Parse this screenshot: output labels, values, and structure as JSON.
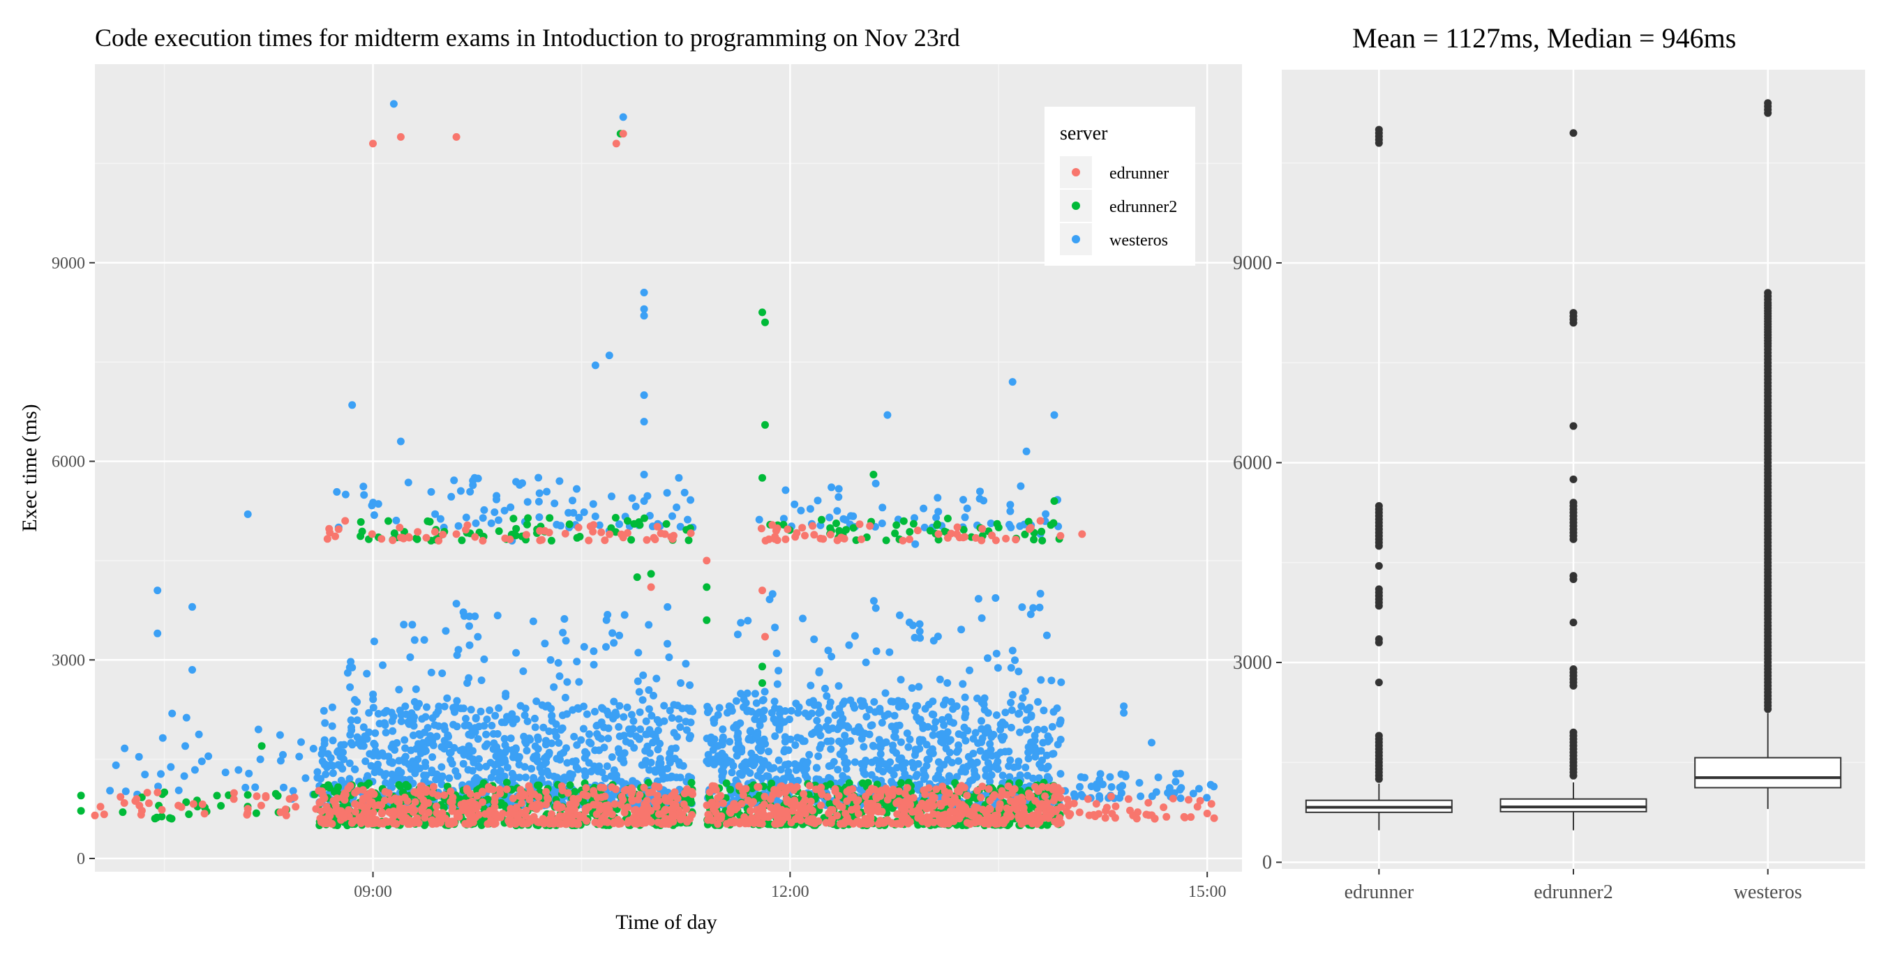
{
  "chart_data": [
    {
      "type": "scatter",
      "title": "Code execution times for midterm exams in Intoduction to programming on Nov 23rd",
      "xlabel": "Time of day",
      "ylabel": "Exec time (ms)",
      "xlim": [
        7.0,
        15.25
      ],
      "ylim": [
        -200,
        12000
      ],
      "x_ticks": [
        9,
        12,
        15
      ],
      "x_tick_labels": [
        "09:00",
        "12:00",
        "15:00"
      ],
      "y_ticks": [
        0,
        3000,
        6000,
        9000
      ],
      "y_tick_labels": [
        "0",
        "3000",
        "6000",
        "9000"
      ],
      "grid": true,
      "legend": {
        "title": "server",
        "placement": "top-right",
        "entries": [
          {
            "name": "edrunner",
            "color": "#F8766D"
          },
          {
            "name": "edrunner2",
            "color": "#00BA38"
          },
          {
            "name": "westeros",
            "color": "#3BA0F5"
          }
        ]
      },
      "series": [
        {
          "name": "edrunner",
          "color": "#F8766D",
          "points": [
            [
              9.0,
              10800
            ],
            [
              9.2,
              10900
            ],
            [
              9.6,
              10900
            ],
            [
              10.75,
              10800
            ],
            [
              10.8,
              10950
            ],
            [
              11.0,
              4100
            ],
            [
              11.4,
              4500
            ],
            [
              11.8,
              4050
            ],
            [
              11.82,
              3350
            ],
            [
              7.0,
              650
            ],
            [
              7.3,
              900
            ],
            [
              7.6,
              800
            ],
            [
              8.1,
              750
            ],
            [
              8.4,
              900
            ],
            [
              14.0,
              800
            ],
            [
              14.5,
              700
            ],
            [
              15.0,
              680
            ],
            [
              8.8,
              5100
            ],
            [
              9.2,
              4850
            ],
            [
              9.6,
              4900
            ],
            [
              10.2,
              4950
            ],
            [
              10.8,
              4850
            ],
            [
              11.1,
              4900
            ],
            [
              11.9,
              4950
            ],
            [
              12.5,
              5050
            ],
            [
              13.2,
              4900
            ],
            [
              13.8,
              5100
            ],
            [
              14.1,
              4900
            ]
          ],
          "clusters": [
            {
              "x_range": [
                8.65,
                11.3
              ],
              "y_range": [
                5050,
                4800
              ],
              "count": 50
            },
            {
              "x_range": [
                11.75,
                13.95
              ],
              "y_range": [
                5050,
                4800
              ],
              "count": 45
            },
            {
              "x_range": [
                8.6,
                11.3
              ],
              "y_range": [
                520,
                1100
              ],
              "count": 500
            },
            {
              "x_range": [
                11.4,
                13.95
              ],
              "y_range": [
                520,
                1100
              ],
              "count": 500
            },
            {
              "x_range": [
                13.95,
                15.05
              ],
              "y_range": [
                600,
                950
              ],
              "count": 40
            },
            {
              "x_range": [
                7.0,
                8.6
              ],
              "y_range": [
                620,
                1000
              ],
              "count": 30
            }
          ]
        },
        {
          "name": "edrunner2",
          "color": "#00BA38",
          "points": [
            [
              10.78,
              10950
            ],
            [
              11.8,
              8250
            ],
            [
              11.82,
              8100
            ],
            [
              11.82,
              6550
            ],
            [
              11.8,
              5750
            ],
            [
              11.0,
              4300
            ],
            [
              10.9,
              4250
            ],
            [
              11.4,
              4100
            ],
            [
              11.4,
              3600
            ],
            [
              11.8,
              2900
            ],
            [
              11.8,
              2650
            ],
            [
              6.9,
              950
            ],
            [
              6.9,
              720
            ],
            [
              7.2,
              700
            ],
            [
              7.5,
              1000
            ],
            [
              8.2,
              1700
            ],
            [
              12.6,
              5800
            ],
            [
              13.9,
              5400
            ],
            [
              13.5,
              5000
            ]
          ],
          "clusters": [
            {
              "x_range": [
                8.75,
                11.3
              ],
              "y_range": [
                5150,
                4800
              ],
              "count": 60
            },
            {
              "x_range": [
                11.75,
                13.95
              ],
              "y_range": [
                5150,
                4800
              ],
              "count": 50
            },
            {
              "x_range": [
                8.6,
                11.3
              ],
              "y_range": [
                500,
                1150
              ],
              "count": 450
            },
            {
              "x_range": [
                11.4,
                13.95
              ],
              "y_range": [
                500,
                1150
              ],
              "count": 450
            },
            {
              "x_range": [
                7.2,
                8.6
              ],
              "y_range": [
                600,
                1000
              ],
              "count": 25
            }
          ]
        },
        {
          "name": "westeros",
          "color": "#3BA0F5",
          "points": [
            [
              9.15,
              11400
            ],
            [
              10.8,
              11200
            ],
            [
              10.95,
              8550
            ],
            [
              10.6,
              7450
            ],
            [
              10.7,
              7600
            ],
            [
              9.2,
              6300
            ],
            [
              8.85,
              6850
            ],
            [
              12.7,
              6700
            ],
            [
              13.6,
              7200
            ],
            [
              13.7,
              6150
            ],
            [
              13.9,
              6700
            ],
            [
              11.2,
              5750
            ],
            [
              7.45,
              4050
            ],
            [
              7.45,
              3400
            ],
            [
              7.7,
              3800
            ],
            [
              8.1,
              5200
            ],
            [
              7.7,
              2850
            ],
            [
              9.3,
              3300
            ],
            [
              9.6,
              3850
            ],
            [
              10.95,
              8200
            ],
            [
              10.95,
              8300
            ],
            [
              10.95,
              7000
            ],
            [
              10.95,
              6600
            ],
            [
              10.95,
              5800
            ],
            [
              10.95,
              5400
            ],
            [
              10.0,
              4800
            ],
            [
              10.7,
              4950
            ],
            [
              13.8,
              4000
            ],
            [
              13.8,
              4900
            ],
            [
              12.9,
              4750
            ],
            [
              14.4,
              2200
            ],
            [
              14.4,
              2300
            ],
            [
              14.6,
              1750
            ]
          ],
          "clusters": [
            {
              "x_range": [
                8.7,
                11.3
              ],
              "y_range": [
                5000,
                5800
              ],
              "count": 80
            },
            {
              "x_range": [
                11.75,
                13.95
              ],
              "y_range": [
                5000,
                5700
              ],
              "count": 55
            },
            {
              "x_range": [
                8.6,
                11.3
              ],
              "y_range": [
                800,
                2300
              ],
              "count": 900
            },
            {
              "x_range": [
                11.4,
                13.95
              ],
              "y_range": [
                800,
                2400
              ],
              "count": 900
            },
            {
              "x_range": [
                8.8,
                11.3
              ],
              "y_range": [
                2300,
                3800
              ],
              "count": 90
            },
            {
              "x_range": [
                11.6,
                13.95
              ],
              "y_range": [
                2300,
                4000
              ],
              "count": 90
            },
            {
              "x_range": [
                7.1,
                8.6
              ],
              "y_range": [
                900,
                2200
              ],
              "count": 40
            },
            {
              "x_range": [
                13.95,
                15.05
              ],
              "y_range": [
                900,
                1300
              ],
              "count": 50
            }
          ]
        }
      ]
    },
    {
      "type": "box",
      "title": "Mean = 1127ms, Median = 946ms",
      "xlabel": "",
      "ylabel": "",
      "categories": [
        "edrunner",
        "edrunner2",
        "westeros"
      ],
      "ylim": [
        -100,
        11900
      ],
      "y_ticks": [
        0,
        3000,
        6000,
        9000
      ],
      "y_tick_labels": [
        "0",
        "3000",
        "6000",
        "9000"
      ],
      "grid": true,
      "boxes": [
        {
          "category": "edrunner",
          "min": 480,
          "q1": 750,
          "median": 825,
          "q3": 930,
          "max": 1180,
          "outliers": [
            10800,
            10900,
            10950,
            11000,
            5350,
            5250,
            5150,
            5050,
            4950,
            4850,
            4750,
            4450,
            4100,
            4000,
            3850,
            3350,
            3300,
            2700,
            1900,
            1800,
            1700,
            1600,
            1500,
            1400,
            1300,
            1250
          ]
        },
        {
          "category": "edrunner2",
          "min": 480,
          "q1": 760,
          "median": 830,
          "q3": 950,
          "max": 1200,
          "outliers": [
            10950,
            8250,
            8100,
            6550,
            5750,
            5400,
            5250,
            5150,
            5050,
            4950,
            4850,
            4300,
            4250,
            3600,
            2900,
            2800,
            2650,
            1950,
            1850,
            1700,
            1600,
            1500,
            1400,
            1300
          ]
        },
        {
          "category": "westeros",
          "min": 800,
          "q1": 1120,
          "median": 1270,
          "q3": 1570,
          "max": 2240,
          "outliers": [
            11400,
            11250,
            8550,
            8400,
            8200,
            8000,
            7750,
            7600,
            7450,
            7300,
            7200,
            7100,
            6950,
            6850,
            6750,
            6700,
            6600,
            6450,
            6300,
            6150,
            6000,
            5850,
            5750,
            5600,
            5500,
            5400,
            5300,
            5200,
            5100,
            5000,
            4900,
            4800,
            4700,
            4600,
            4500,
            4400,
            4300,
            4200,
            4100,
            4000,
            3900,
            3800,
            3700,
            3600,
            3500,
            3400,
            3300,
            3200,
            3100,
            3000,
            2900,
            2800,
            2700,
            2600,
            2500,
            2400,
            2300
          ]
        }
      ]
    }
  ]
}
